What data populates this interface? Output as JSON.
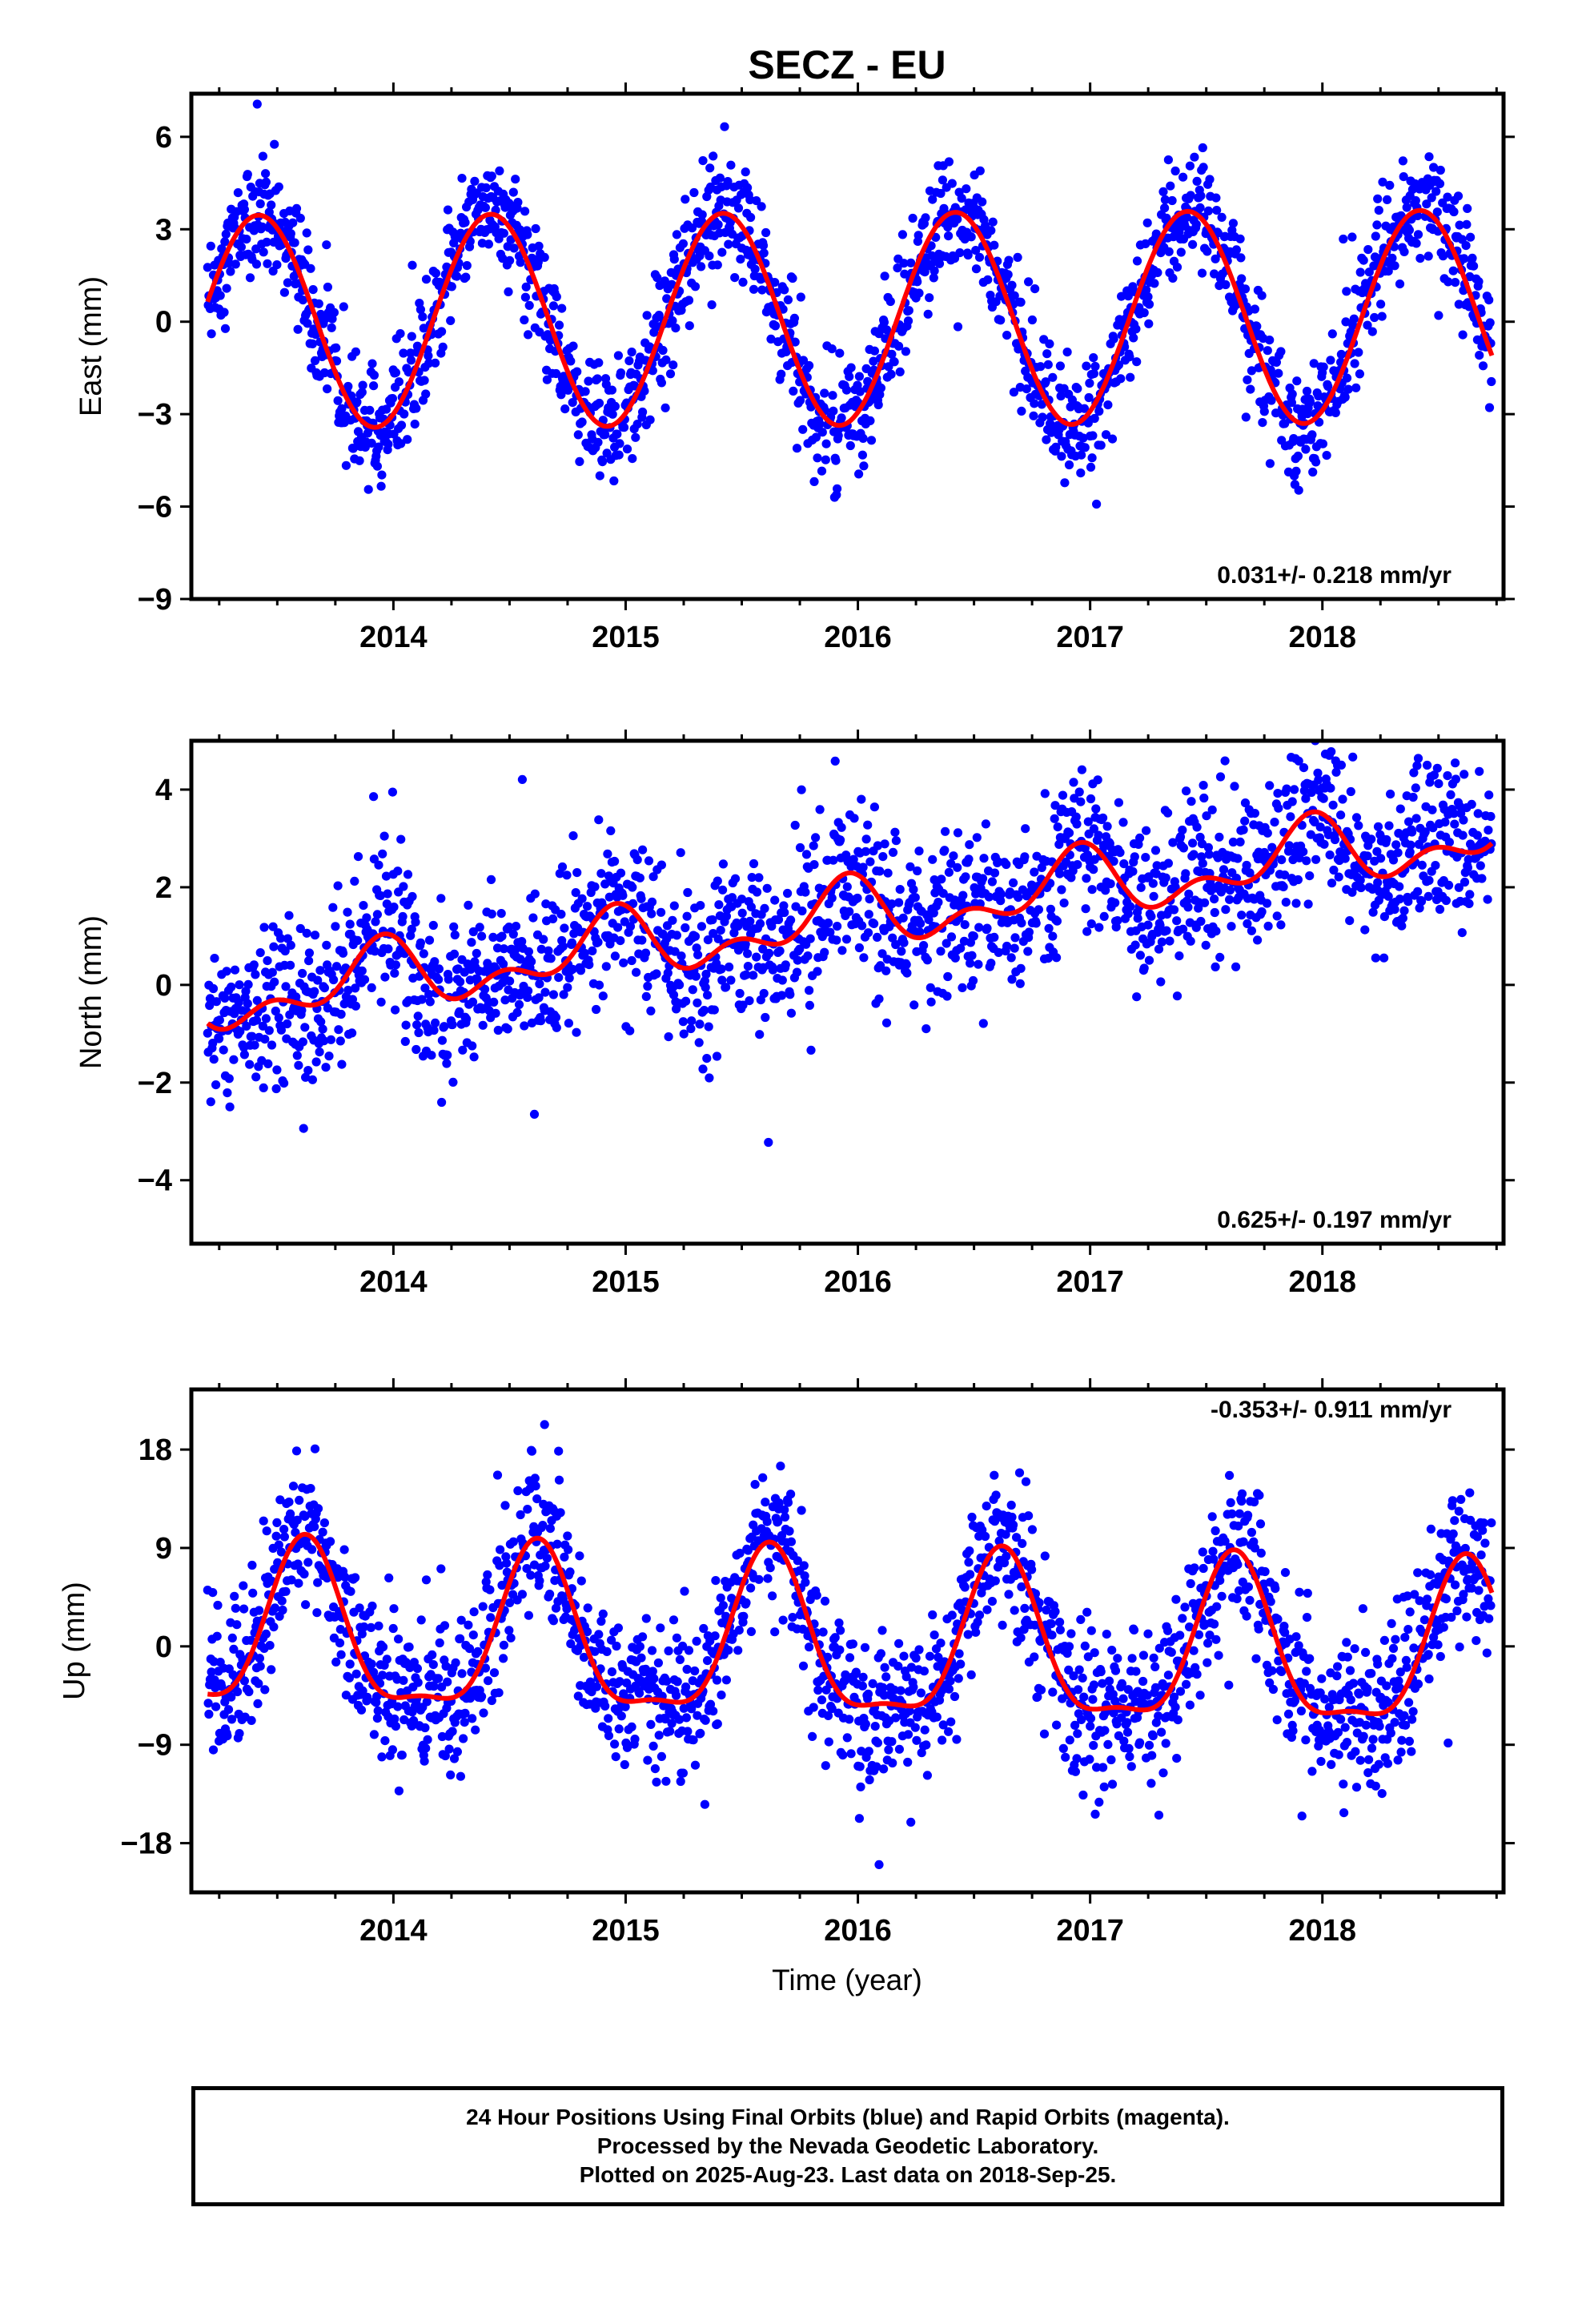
{
  "title": "SECZ - EU",
  "xlabel": "Time (year)",
  "footer": [
    "24 Hour Positions Using Final Orbits (blue) and Rapid Orbits (magenta).",
    "Processed by the Nevada Geodetic Laboratory.",
    "Plotted on 2025-Aug-23. Last data on 2018-Sep-25."
  ],
  "colors": {
    "observations": "#0000ff",
    "model": "#ff0000",
    "frame": "#000000"
  },
  "chart_data": [
    {
      "type": "scatter",
      "name": "east",
      "ylabel": "East (mm)",
      "xlim": [
        2013.13,
        2018.78
      ],
      "ylim": [
        -9,
        7.4
      ],
      "yticks": [
        -9,
        -6,
        -3,
        0,
        3,
        6
      ],
      "ytick_labels": [
        "−9",
        "−6",
        "−3",
        "0",
        "3",
        "6"
      ],
      "xticks": [
        2014,
        2015,
        2016,
        2017,
        2018
      ],
      "xtick_labels": [
        "2014",
        "2015",
        "2016",
        "2017",
        "2018"
      ],
      "rate_label": "0.031+/- 0.218 mm/yr",
      "rate_position": "bottom-right",
      "model": {
        "offset": 0.0,
        "trend": 0.031,
        "annual_amplitude": 3.45,
        "annual_peak": 0.42,
        "semiannual_amplitude": 0.0,
        "semiannual_peak": 0.0
      },
      "scatter_std": 0.95,
      "series": [
        {
          "name": "observations",
          "x_start": 2013.2,
          "x_end": 2018.73
        },
        {
          "name": "model"
        }
      ]
    },
    {
      "type": "scatter",
      "name": "north",
      "ylabel": "North (mm)",
      "xlim": [
        2013.13,
        2018.78
      ],
      "ylim": [
        -5.3,
        5.0
      ],
      "yticks": [
        -4,
        -2,
        0,
        2,
        4
      ],
      "ytick_labels": [
        "−4",
        "−2",
        "0",
        "2",
        "4"
      ],
      "xticks": [
        2014,
        2015,
        2016,
        2017,
        2018
      ],
      "xtick_labels": [
        "2014",
        "2015",
        "2016",
        "2017",
        "2018"
      ],
      "rate_label": "0.625+/- 0.197 mm/yr",
      "rate_position": "bottom-right",
      "model": {
        "offset": -0.35,
        "trend": 0.625,
        "annual_amplitude": 0.55,
        "annual_peak": 0.93,
        "semiannual_amplitude": 0.38,
        "semiannual_peak": 0.47
      },
      "scatter_std": 0.85,
      "series": [
        {
          "name": "observations",
          "x_start": 2013.2,
          "x_end": 2018.73
        },
        {
          "name": "model"
        }
      ]
    },
    {
      "type": "scatter",
      "name": "up",
      "ylabel": "Up (mm)",
      "xlim": [
        2013.13,
        2018.78
      ],
      "ylim": [
        -22.5,
        23.5
      ],
      "yticks": [
        -18,
        -9,
        0,
        9,
        18
      ],
      "ytick_labels": [
        "−18",
        "−9",
        "0",
        "9",
        "18"
      ],
      "xticks": [
        2014,
        2015,
        2016,
        2017,
        2018
      ],
      "xtick_labels": [
        "2014",
        "2015",
        "2016",
        "2017",
        "2018"
      ],
      "rate_label": "-0.353+/- 0.911 mm/yr",
      "rate_position": "top-right",
      "model": {
        "offset": 0.8,
        "trend": -0.353,
        "annual_amplitude": 7.3,
        "annual_peak": 0.62,
        "semiannual_amplitude": 2.3,
        "semiannual_peak": 0.12
      },
      "scatter_std": 3.4,
      "series": [
        {
          "name": "observations",
          "x_start": 2013.2,
          "x_end": 2018.73
        },
        {
          "name": "model"
        }
      ]
    }
  ]
}
